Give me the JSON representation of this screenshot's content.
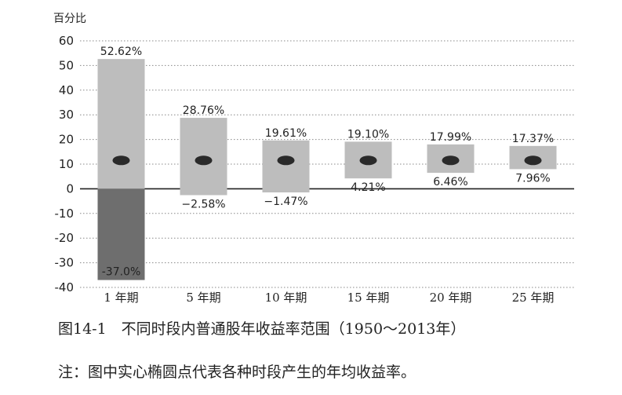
{
  "chart_data": {
    "type": "bar",
    "ylabel": "百分比",
    "ylim": [
      -40,
      60
    ],
    "yticks": [
      60,
      50,
      40,
      30,
      20,
      10,
      0,
      -10,
      -20,
      -30,
      -40
    ],
    "grid": true,
    "categories": [
      "1 年期",
      "5 年期",
      "10 年期",
      "15 年期",
      "20 年期",
      "25 年期"
    ],
    "highs": [
      52.62,
      28.76,
      19.61,
      19.1,
      17.99,
      17.37
    ],
    "lows": [
      -37.0,
      -2.58,
      -1.47,
      4.21,
      6.46,
      7.96
    ],
    "high_labels": [
      "52.62%",
      "28.76%",
      "19.61%",
      "19.10%",
      "17.99%",
      "17.37%"
    ],
    "low_labels": [
      "-37.0%",
      "−2.58%",
      "−1.47%",
      "4.21%",
      "6.46%",
      "7.96%"
    ],
    "averages": [
      11.5,
      11.5,
      11.5,
      11.5,
      11.5,
      11.5
    ],
    "colors": {
      "bar": "#bdbdbd",
      "negative_1yr": "#6e6e6e",
      "dot": "#2a2a2a"
    }
  },
  "caption": "图14-1　不同时段内普通股年收益率范围（1950～2013年）",
  "note": "注：图中实心椭圆点代表各种时段产生的年均收益率。"
}
